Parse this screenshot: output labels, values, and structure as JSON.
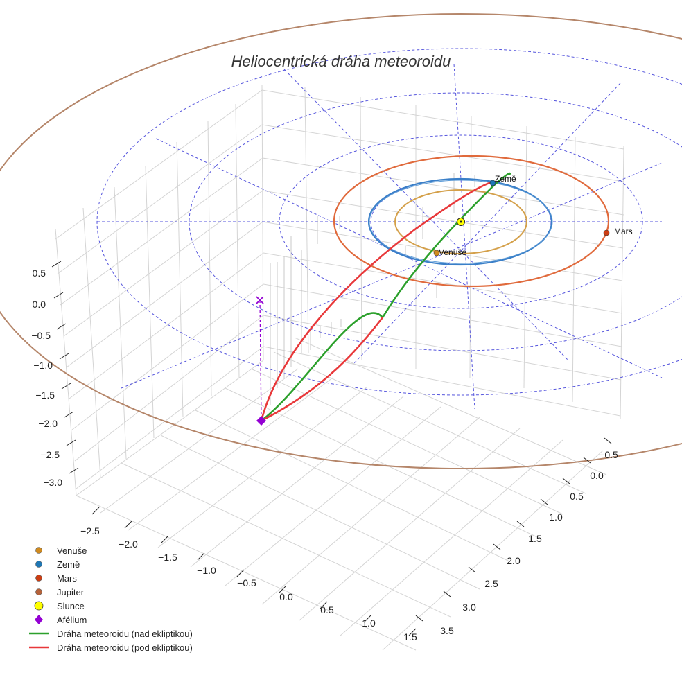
{
  "chart_data": {
    "type": "3d-line",
    "title": "Heliocentrická dráha meteoroidu",
    "axes": {
      "x_ticks": [
        "−2.5",
        "−2.0",
        "−1.5",
        "−1.0",
        "−0.5",
        "0.0",
        "0.5",
        "1.0",
        "1.5"
      ],
      "y_ticks": [
        "−0.5",
        "0.0",
        "0.5",
        "1.0",
        "1.5",
        "2.0",
        "2.5",
        "3.0",
        "3.5"
      ],
      "z_ticks": [
        "0.5",
        "0.0",
        "−0.5",
        "−1.0",
        "−1.5",
        "−2.0",
        "−2.5",
        "−3.0"
      ],
      "xlim": [
        -2.8,
        1.6
      ],
      "ylim": [
        -0.8,
        3.6
      ],
      "zlim": [
        -3.3,
        0.8
      ]
    },
    "orbits": [
      {
        "name": "Venuše",
        "radius_au": 0.72,
        "color": "#d4a04a"
      },
      {
        "name": "Země",
        "radius_au": 1.0,
        "color": "#3a7fc8"
      },
      {
        "name": "Mars",
        "radius_au": 1.52,
        "color": "#e06a3c"
      },
      {
        "name": "Jupiter",
        "radius_au": 5.2,
        "color": "#b58766"
      }
    ],
    "reference_rings_au": [
      1,
      2,
      3,
      4
    ],
    "point_labels": {
      "venus": "Venuše",
      "earth": "Země",
      "mars": "Mars"
    },
    "meteoroid": {
      "aphelion_au": [
        -1.45,
        1.1,
        -2.0
      ],
      "aphelion_projection_au": [
        -1.45,
        1.1,
        0.0
      ]
    },
    "legend": [
      {
        "label": "Venuše",
        "marker": "circle",
        "color": "#d08a1e"
      },
      {
        "label": "Země",
        "marker": "circle",
        "color": "#1f77b4"
      },
      {
        "label": "Mars",
        "marker": "circle",
        "color": "#cc3d12"
      },
      {
        "label": "Jupiter",
        "marker": "circle",
        "color": "#b5623a"
      },
      {
        "label": "Slunce",
        "marker": "circle-large",
        "color": "#ffff00"
      },
      {
        "label": "Afélium",
        "marker": "diamond",
        "color": "#9400d3"
      },
      {
        "label": "Dráha meteoroidu (nad ekliptikou)",
        "marker": "line",
        "color": "#2ca02c"
      },
      {
        "label": "Dráha meteoroidu (pod ekliptikou)",
        "marker": "line",
        "color": "#e8383a"
      }
    ]
  }
}
